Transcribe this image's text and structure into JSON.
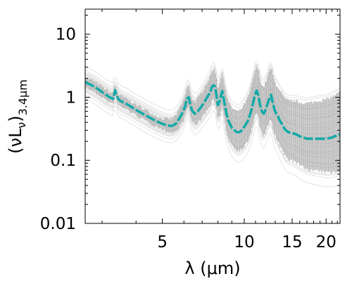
{
  "chart_data": {
    "type": "line",
    "title": "",
    "xlabel": "λ (μm)",
    "ylabel_main": "(νL",
    "ylabel_sub1": "ν",
    "ylabel_close": ")",
    "ylabel_sub2": "3.4μm",
    "x_scale": "log",
    "y_scale": "log",
    "xlim": [
      2.6,
      22.5
    ],
    "ylim": [
      0.01,
      25
    ],
    "xticks": [
      {
        "value": 5,
        "label": "5"
      },
      {
        "value": 10,
        "label": "10"
      },
      {
        "value": 15,
        "label": "15"
      },
      {
        "value": 20,
        "label": "20"
      }
    ],
    "yticks": [
      {
        "value": 0.01,
        "label": "0.01"
      },
      {
        "value": 0.1,
        "label": "0.1"
      },
      {
        "value": 1,
        "label": "1"
      },
      {
        "value": 10,
        "label": "10"
      }
    ],
    "grid": false,
    "legend": "none",
    "colors": {
      "mean": "#12aaa8",
      "spread": "#a6a6a6",
      "faint": "#e3e3e3"
    },
    "series": [
      {
        "role": "mean",
        "x": [
          2.6,
          2.75,
          2.9,
          3.05,
          3.2,
          3.3,
          3.35,
          3.4,
          3.45,
          3.55,
          3.7,
          3.85,
          4.0,
          4.2,
          4.4,
          4.6,
          4.8,
          5.0,
          5.2,
          5.4,
          5.6,
          5.75,
          5.9,
          6.05,
          6.15,
          6.25,
          6.35,
          6.45,
          6.6,
          6.75,
          6.9,
          7.05,
          7.2,
          7.35,
          7.5,
          7.6,
          7.7,
          7.8,
          7.9,
          8.0,
          8.1,
          8.3,
          8.5,
          8.6,
          8.7,
          8.85,
          9.0,
          9.2,
          9.4,
          9.6,
          9.8,
          10.0,
          10.3,
          10.6,
          10.9,
          11.1,
          11.25,
          11.4,
          11.6,
          11.8,
          12.0,
          12.3,
          12.55,
          12.7,
          12.9,
          13.1,
          13.3,
          13.5,
          13.8,
          14.1,
          14.5,
          15.0,
          15.5,
          16.0,
          16.5,
          17.0,
          17.5,
          18.0,
          19.0,
          20.0,
          21.0,
          22.0,
          22.5
        ],
        "y": [
          1.75,
          1.55,
          1.35,
          1.15,
          1.0,
          0.95,
          1.3,
          1.05,
          0.92,
          0.85,
          0.78,
          0.7,
          0.63,
          0.56,
          0.5,
          0.45,
          0.41,
          0.38,
          0.36,
          0.35,
          0.38,
          0.45,
          0.55,
          0.7,
          0.95,
          1.0,
          0.72,
          0.6,
          0.55,
          0.6,
          0.68,
          0.78,
          0.9,
          1.05,
          1.2,
          1.45,
          1.55,
          1.5,
          1.1,
          0.75,
          0.85,
          1.25,
          0.72,
          0.55,
          0.45,
          0.38,
          0.33,
          0.3,
          0.28,
          0.28,
          0.3,
          0.34,
          0.42,
          0.6,
          1.0,
          1.28,
          1.1,
          0.8,
          0.6,
          0.55,
          0.65,
          0.9,
          1.1,
          0.85,
          0.65,
          0.55,
          0.5,
          0.43,
          0.37,
          0.31,
          0.28,
          0.27,
          0.26,
          0.24,
          0.23,
          0.22,
          0.22,
          0.22,
          0.22,
          0.22,
          0.23,
          0.25,
          0.26
        ]
      }
    ]
  }
}
